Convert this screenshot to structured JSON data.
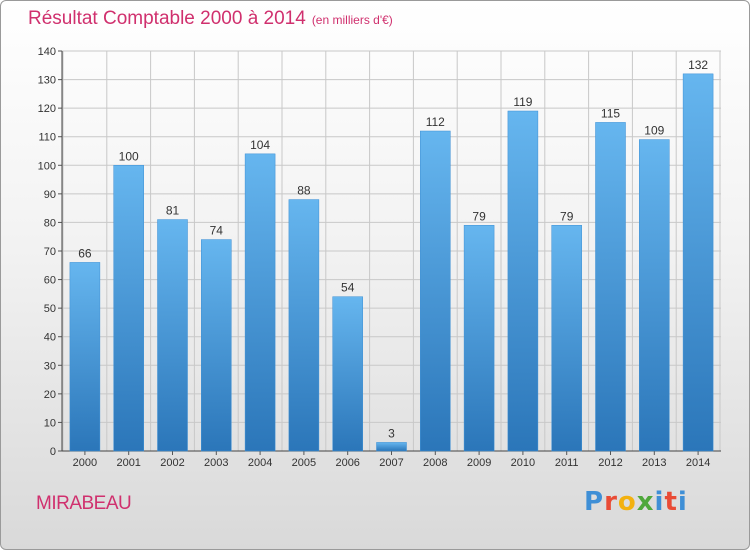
{
  "header": {
    "title": "Résultat Comptable 2000 à 2014",
    "subtitle": "(en milliers d'€)"
  },
  "footer": {
    "city": "MIRABEAU",
    "logo": "Proxiti",
    "logo_colors": [
      "#3f8fd6",
      "#e94b35",
      "#f3b10f",
      "#4fa83b",
      "#3f8fd6",
      "#e94b35",
      "#3f8fd6"
    ]
  },
  "chart_data": {
    "type": "bar",
    "title": "Résultat Comptable 2000 à 2014",
    "subtitle": "(en milliers d'€)",
    "categories": [
      "2000",
      "2001",
      "2002",
      "2003",
      "2004",
      "2005",
      "2006",
      "2007",
      "2008",
      "2009",
      "2010",
      "2011",
      "2012",
      "2013",
      "2014"
    ],
    "values": [
      66,
      100,
      81,
      74,
      104,
      88,
      54,
      3,
      112,
      79,
      119,
      79,
      115,
      109,
      132
    ],
    "ylim": [
      0,
      140
    ],
    "yticks": [
      0,
      10,
      20,
      30,
      40,
      50,
      60,
      70,
      80,
      90,
      100,
      110,
      120,
      130,
      140
    ],
    "grid": true,
    "colors": {
      "bar_top": "#66b6ef",
      "bar_bottom": "#2b76b9",
      "grid": "#c8c8c8",
      "title": "#d0306e"
    }
  }
}
